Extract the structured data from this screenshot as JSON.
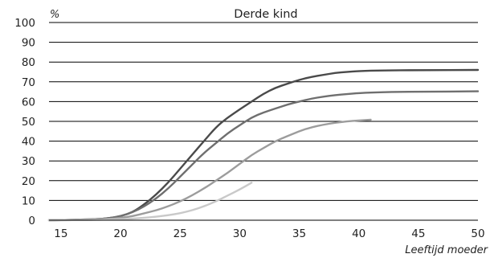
{
  "chart_data": {
    "type": "line",
    "title": "Derde kind",
    "ylabel": "%",
    "xlabel": "Leeftijd moeder",
    "xlim": [
      14,
      50
    ],
    "ylim": [
      0,
      100
    ],
    "x_ticks": [
      15,
      20,
      25,
      30,
      35,
      40,
      45,
      50
    ],
    "y_ticks": [
      0,
      10,
      20,
      30,
      40,
      50,
      60,
      70,
      80,
      90,
      100
    ],
    "grid": "horizontal",
    "series": [
      {
        "color": "#4a4a4a",
        "width": 2.4,
        "points": [
          [
            14,
            0
          ],
          [
            16,
            0.2
          ],
          [
            18,
            0.5
          ],
          [
            19,
            1
          ],
          [
            20,
            2
          ],
          [
            21,
            4
          ],
          [
            22,
            8
          ],
          [
            23,
            13
          ],
          [
            24,
            19
          ],
          [
            25,
            26
          ],
          [
            26,
            33
          ],
          [
            27,
            40
          ],
          [
            28,
            47
          ],
          [
            29,
            52
          ],
          [
            30,
            56
          ],
          [
            31,
            60
          ],
          [
            32,
            64
          ],
          [
            33,
            67
          ],
          [
            34,
            69
          ],
          [
            35,
            71
          ],
          [
            36,
            72.5
          ],
          [
            37,
            73.5
          ],
          [
            38,
            74.5
          ],
          [
            39,
            75
          ],
          [
            40,
            75.5
          ],
          [
            42,
            75.8
          ],
          [
            45,
            75.9
          ],
          [
            50,
            76
          ]
        ]
      },
      {
        "color": "#6f6f6f",
        "width": 2.4,
        "points": [
          [
            14,
            0
          ],
          [
            16,
            0.2
          ],
          [
            18,
            0.5
          ],
          [
            19,
            1
          ],
          [
            20,
            2
          ],
          [
            21,
            4
          ],
          [
            22,
            7
          ],
          [
            23,
            11
          ],
          [
            24,
            16
          ],
          [
            25,
            22
          ],
          [
            26,
            28
          ],
          [
            27,
            34
          ],
          [
            28,
            39
          ],
          [
            29,
            44
          ],
          [
            30,
            48
          ],
          [
            31,
            52
          ],
          [
            32,
            54.5
          ],
          [
            33,
            56.5
          ],
          [
            34,
            58.5
          ],
          [
            35,
            60
          ],
          [
            36,
            61.5
          ],
          [
            37,
            62.5
          ],
          [
            38,
            63.3
          ],
          [
            39,
            63.8
          ],
          [
            40,
            64.3
          ],
          [
            42,
            64.8
          ],
          [
            45,
            65
          ],
          [
            50,
            65.2
          ]
        ]
      },
      {
        "color": "#9c9c9c",
        "width": 2.4,
        "points": [
          [
            14,
            0
          ],
          [
            16,
            0.1
          ],
          [
            18,
            0.3
          ],
          [
            19,
            0.6
          ],
          [
            20,
            1.2
          ],
          [
            21,
            2
          ],
          [
            22,
            3.5
          ],
          [
            23,
            5
          ],
          [
            24,
            7
          ],
          [
            25,
            9.5
          ],
          [
            26,
            12.5
          ],
          [
            27,
            16
          ],
          [
            28,
            20
          ],
          [
            29,
            24
          ],
          [
            30,
            28.5
          ],
          [
            31,
            33
          ],
          [
            32,
            36.5
          ],
          [
            33,
            40
          ],
          [
            34,
            42.5
          ],
          [
            35,
            45
          ],
          [
            36,
            47
          ],
          [
            37,
            48.3
          ],
          [
            38,
            49.3
          ],
          [
            39,
            50
          ],
          [
            40,
            50.5
          ],
          [
            41,
            50.8
          ]
        ]
      },
      {
        "color": "#c9c9c9",
        "width": 2.4,
        "points": [
          [
            14,
            0
          ],
          [
            18,
            0.2
          ],
          [
            20,
            0.5
          ],
          [
            21,
            0.8
          ],
          [
            22,
            1.2
          ],
          [
            23,
            1.8
          ],
          [
            24,
            2.5
          ],
          [
            25,
            3.5
          ],
          [
            26,
            5
          ],
          [
            27,
            7
          ],
          [
            28,
            9.5
          ],
          [
            29,
            12.5
          ],
          [
            30,
            15.5
          ],
          [
            31,
            19
          ]
        ]
      }
    ]
  }
}
